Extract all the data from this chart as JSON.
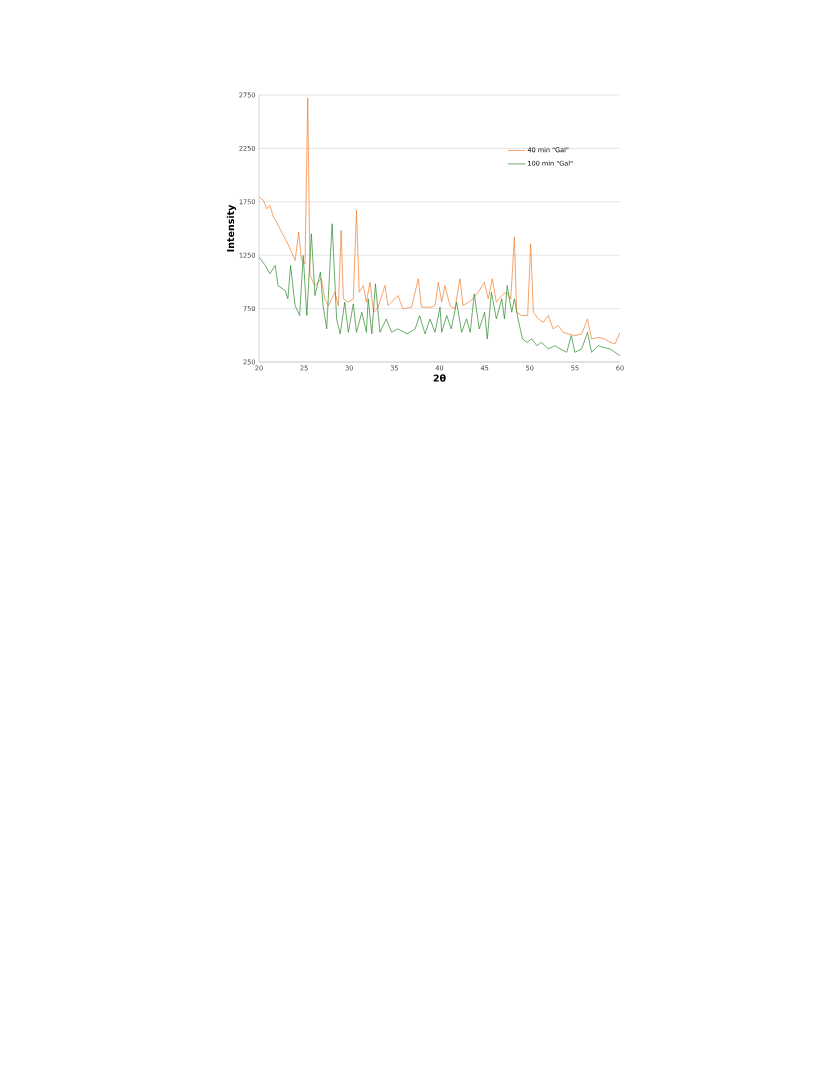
{
  "chart_data": {
    "type": "line",
    "xlabel": "2θ",
    "ylabel": "Intensity",
    "xlim": [
      20,
      60
    ],
    "xticks": [
      20,
      25,
      30,
      35,
      40,
      45,
      50,
      55,
      60
    ],
    "ylim": [
      250,
      2750
    ],
    "yticks": [
      250,
      750,
      1250,
      1750,
      2250,
      2750
    ],
    "grid": "y",
    "legend": "top right",
    "marker": "none",
    "line_style": "solid",
    "series": [
      {
        "name": "40 min \"Gal\"",
        "color": "#f47b2a",
        "x": [
          20,
          20.5,
          20.85,
          21.2,
          21.6,
          21.96,
          22.5,
          23.1,
          23.6,
          24,
          24.4,
          24.7,
          25.1,
          25.4,
          25.65,
          26.2,
          26.9,
          27.3,
          27.7,
          28.4,
          28.8,
          29.1,
          29.35,
          29.9,
          30.45,
          30.8,
          31.1,
          31.55,
          31.9,
          32.3,
          32.7,
          33.2,
          33.95,
          34.3,
          35.4,
          35.95,
          36.9,
          37.65,
          38,
          39.1,
          39.5,
          39.87,
          40.24,
          40.6,
          41.16,
          41.7,
          42.27,
          42.6,
          43.2,
          43.7,
          44.3,
          44.97,
          45.4,
          45.85,
          46.3,
          46.9,
          47.4,
          47.9,
          48.3,
          48.55,
          49.1,
          49.77,
          50.1,
          50.4,
          50.95,
          51.5,
          52.05,
          52.6,
          53.17,
          53.7,
          54.27,
          55,
          55.75,
          56.4,
          56.85,
          57.6,
          58.3,
          58.9,
          59.45,
          60
        ],
        "values": [
          1795,
          1763,
          1685,
          1716,
          1607,
          1560,
          1466,
          1373,
          1279,
          1200,
          1466,
          1200,
          1169,
          2720,
          1060,
          966,
          1029,
          841,
          778,
          904,
          778,
          1482,
          841,
          810,
          841,
          1670,
          904,
          966,
          810,
          997,
          716,
          763,
          966,
          778,
          872,
          747,
          763,
          1029,
          763,
          763,
          778,
          997,
          810,
          966,
          778,
          747,
          1029,
          778,
          810,
          841,
          904,
          997,
          841,
          1029,
          810,
          872,
          904,
          841,
          1420,
          716,
          685,
          685,
          1357,
          716,
          653,
          622,
          685,
          560,
          591,
          528,
          513,
          497,
          513,
          653,
          466,
          481,
          466,
          434,
          419,
          528
        ]
      },
      {
        "name": "100 min \"Gal\"",
        "color": "#2a8a2a",
        "x": [
          20,
          20.7,
          21.2,
          21.8,
          22.1,
          22.9,
          23.2,
          23.5,
          24,
          24.5,
          24.9,
          25.3,
          25.8,
          26.2,
          26.8,
          27.1,
          27.5,
          28.1,
          28.6,
          29,
          29.5,
          29.9,
          30.45,
          30.8,
          31.4,
          31.9,
          32.1,
          32.5,
          32.9,
          33.4,
          34.1,
          34.7,
          35.4,
          36.4,
          37.3,
          37.8,
          38.4,
          38.95,
          39.5,
          40.06,
          40.24,
          40.8,
          41.3,
          41.9,
          42.45,
          43,
          43.4,
          43.85,
          44.4,
          45,
          45.3,
          45.75,
          46.3,
          46.9,
          47.2,
          47.5,
          48,
          48.3,
          48.7,
          49.2,
          49.7,
          50.2,
          50.8,
          51.3,
          52.05,
          52.8,
          53.35,
          54.1,
          54.6,
          55,
          55.75,
          56.4,
          56.85,
          57.6,
          58.1,
          58.9,
          59.45,
          60
        ],
        "values": [
          1232,
          1154,
          1076,
          1154,
          966,
          919,
          841,
          1154,
          778,
          685,
          1247,
          685,
          1451,
          872,
          1091,
          778,
          560,
          1544,
          653,
          513,
          810,
          528,
          794,
          528,
          716,
          528,
          841,
          513,
          982,
          528,
          653,
          528,
          560,
          513,
          560,
          685,
          513,
          653,
          528,
          763,
          528,
          685,
          560,
          810,
          528,
          653,
          528,
          888,
          560,
          716,
          466,
          904,
          653,
          841,
          653,
          966,
          716,
          841,
          653,
          466,
          434,
          466,
          403,
          434,
          372,
          403,
          372,
          341,
          497,
          341,
          372,
          528,
          341,
          403,
          388,
          372,
          341,
          310
        ]
      }
    ]
  }
}
